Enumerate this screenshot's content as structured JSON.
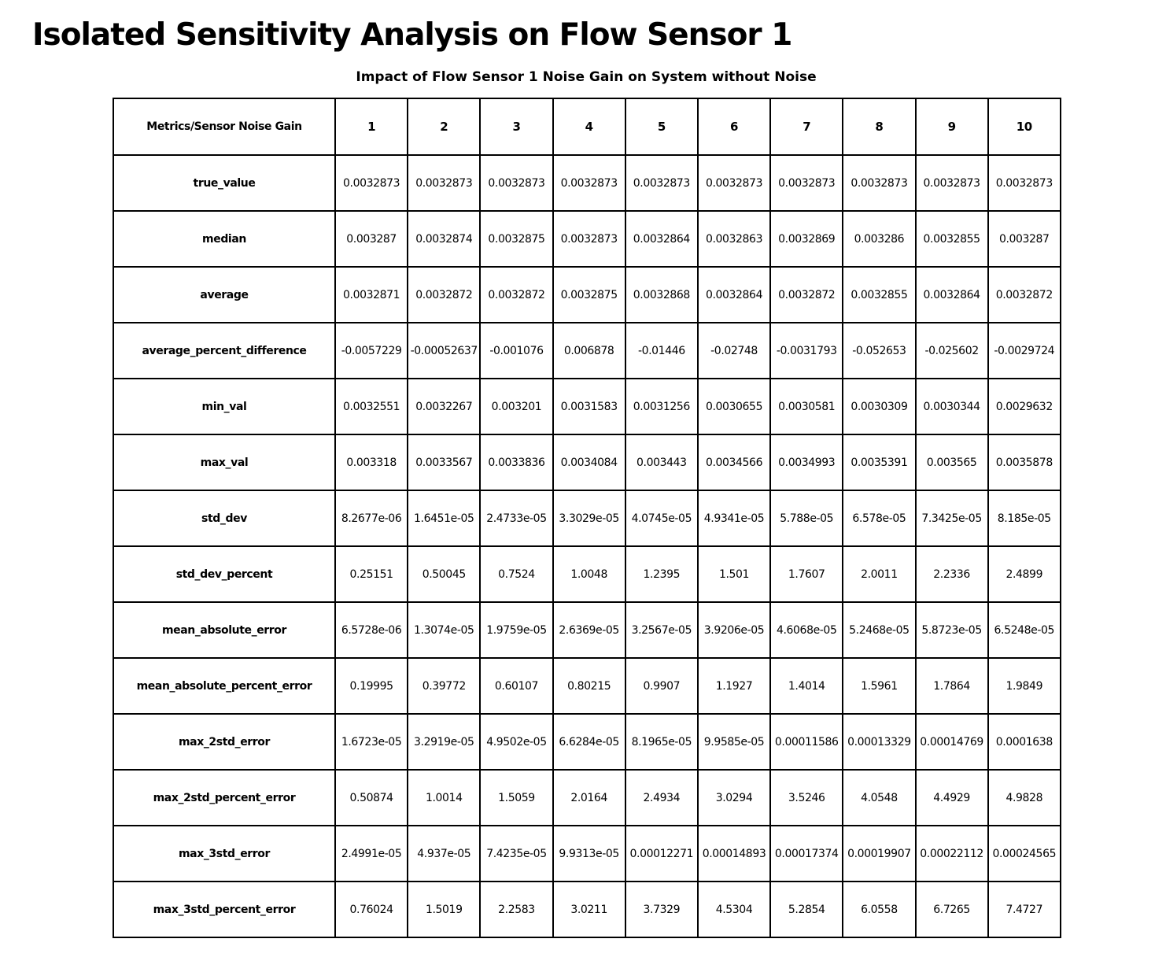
{
  "page": {
    "title": "Isolated Sensitivity Analysis on Flow Sensor 1",
    "subtitle": "Impact of Flow Sensor 1 Noise Gain on System without Noise"
  },
  "chart_data": {
    "type": "table",
    "title": "Impact of Flow Sensor 1 Noise Gain on System without Noise",
    "corner_header": "Metrics/Sensor Noise Gain",
    "columns": [
      "1",
      "2",
      "3",
      "4",
      "5",
      "6",
      "7",
      "8",
      "9",
      "10"
    ],
    "rows": [
      {
        "metric": "true_value",
        "values": [
          "0.0032873",
          "0.0032873",
          "0.0032873",
          "0.0032873",
          "0.0032873",
          "0.0032873",
          "0.0032873",
          "0.0032873",
          "0.0032873",
          "0.0032873"
        ]
      },
      {
        "metric": "median",
        "values": [
          "0.003287",
          "0.0032874",
          "0.0032875",
          "0.0032873",
          "0.0032864",
          "0.0032863",
          "0.0032869",
          "0.003286",
          "0.0032855",
          "0.003287"
        ]
      },
      {
        "metric": "average",
        "values": [
          "0.0032871",
          "0.0032872",
          "0.0032872",
          "0.0032875",
          "0.0032868",
          "0.0032864",
          "0.0032872",
          "0.0032855",
          "0.0032864",
          "0.0032872"
        ]
      },
      {
        "metric": "average_percent_difference",
        "values": [
          "-0.0057229",
          "-0.00052637",
          "-0.001076",
          "0.006878",
          "-0.01446",
          "-0.02748",
          "-0.0031793",
          "-0.052653",
          "-0.025602",
          "-0.0029724"
        ]
      },
      {
        "metric": "min_val",
        "values": [
          "0.0032551",
          "0.0032267",
          "0.003201",
          "0.0031583",
          "0.0031256",
          "0.0030655",
          "0.0030581",
          "0.0030309",
          "0.0030344",
          "0.0029632"
        ]
      },
      {
        "metric": "max_val",
        "values": [
          "0.003318",
          "0.0033567",
          "0.0033836",
          "0.0034084",
          "0.003443",
          "0.0034566",
          "0.0034993",
          "0.0035391",
          "0.003565",
          "0.0035878"
        ]
      },
      {
        "metric": "std_dev",
        "values": [
          "8.2677e-06",
          "1.6451e-05",
          "2.4733e-05",
          "3.3029e-05",
          "4.0745e-05",
          "4.9341e-05",
          "5.788e-05",
          "6.578e-05",
          "7.3425e-05",
          "8.185e-05"
        ]
      },
      {
        "metric": "std_dev_percent",
        "values": [
          "0.25151",
          "0.50045",
          "0.7524",
          "1.0048",
          "1.2395",
          "1.501",
          "1.7607",
          "2.0011",
          "2.2336",
          "2.4899"
        ]
      },
      {
        "metric": "mean_absolute_error",
        "values": [
          "6.5728e-06",
          "1.3074e-05",
          "1.9759e-05",
          "2.6369e-05",
          "3.2567e-05",
          "3.9206e-05",
          "4.6068e-05",
          "5.2468e-05",
          "5.8723e-05",
          "6.5248e-05"
        ]
      },
      {
        "metric": "mean_absolute_percent_error",
        "values": [
          "0.19995",
          "0.39772",
          "0.60107",
          "0.80215",
          "0.9907",
          "1.1927",
          "1.4014",
          "1.5961",
          "1.7864",
          "1.9849"
        ]
      },
      {
        "metric": "max_2std_error",
        "values": [
          "1.6723e-05",
          "3.2919e-05",
          "4.9502e-05",
          "6.6284e-05",
          "8.1965e-05",
          "9.9585e-05",
          "0.00011586",
          "0.00013329",
          "0.00014769",
          "0.0001638"
        ]
      },
      {
        "metric": "max_2std_percent_error",
        "values": [
          "0.50874",
          "1.0014",
          "1.5059",
          "2.0164",
          "2.4934",
          "3.0294",
          "3.5246",
          "4.0548",
          "4.4929",
          "4.9828"
        ]
      },
      {
        "metric": "max_3std_error",
        "values": [
          "2.4991e-05",
          "4.937e-05",
          "7.4235e-05",
          "9.9313e-05",
          "0.00012271",
          "0.00014893",
          "0.00017374",
          "0.00019907",
          "0.00022112",
          "0.00024565"
        ]
      },
      {
        "metric": "max_3std_percent_error",
        "values": [
          "0.76024",
          "1.5019",
          "2.2583",
          "3.0211",
          "3.7329",
          "4.5304",
          "5.2854",
          "6.0558",
          "6.7265",
          "7.4727"
        ]
      }
    ]
  }
}
